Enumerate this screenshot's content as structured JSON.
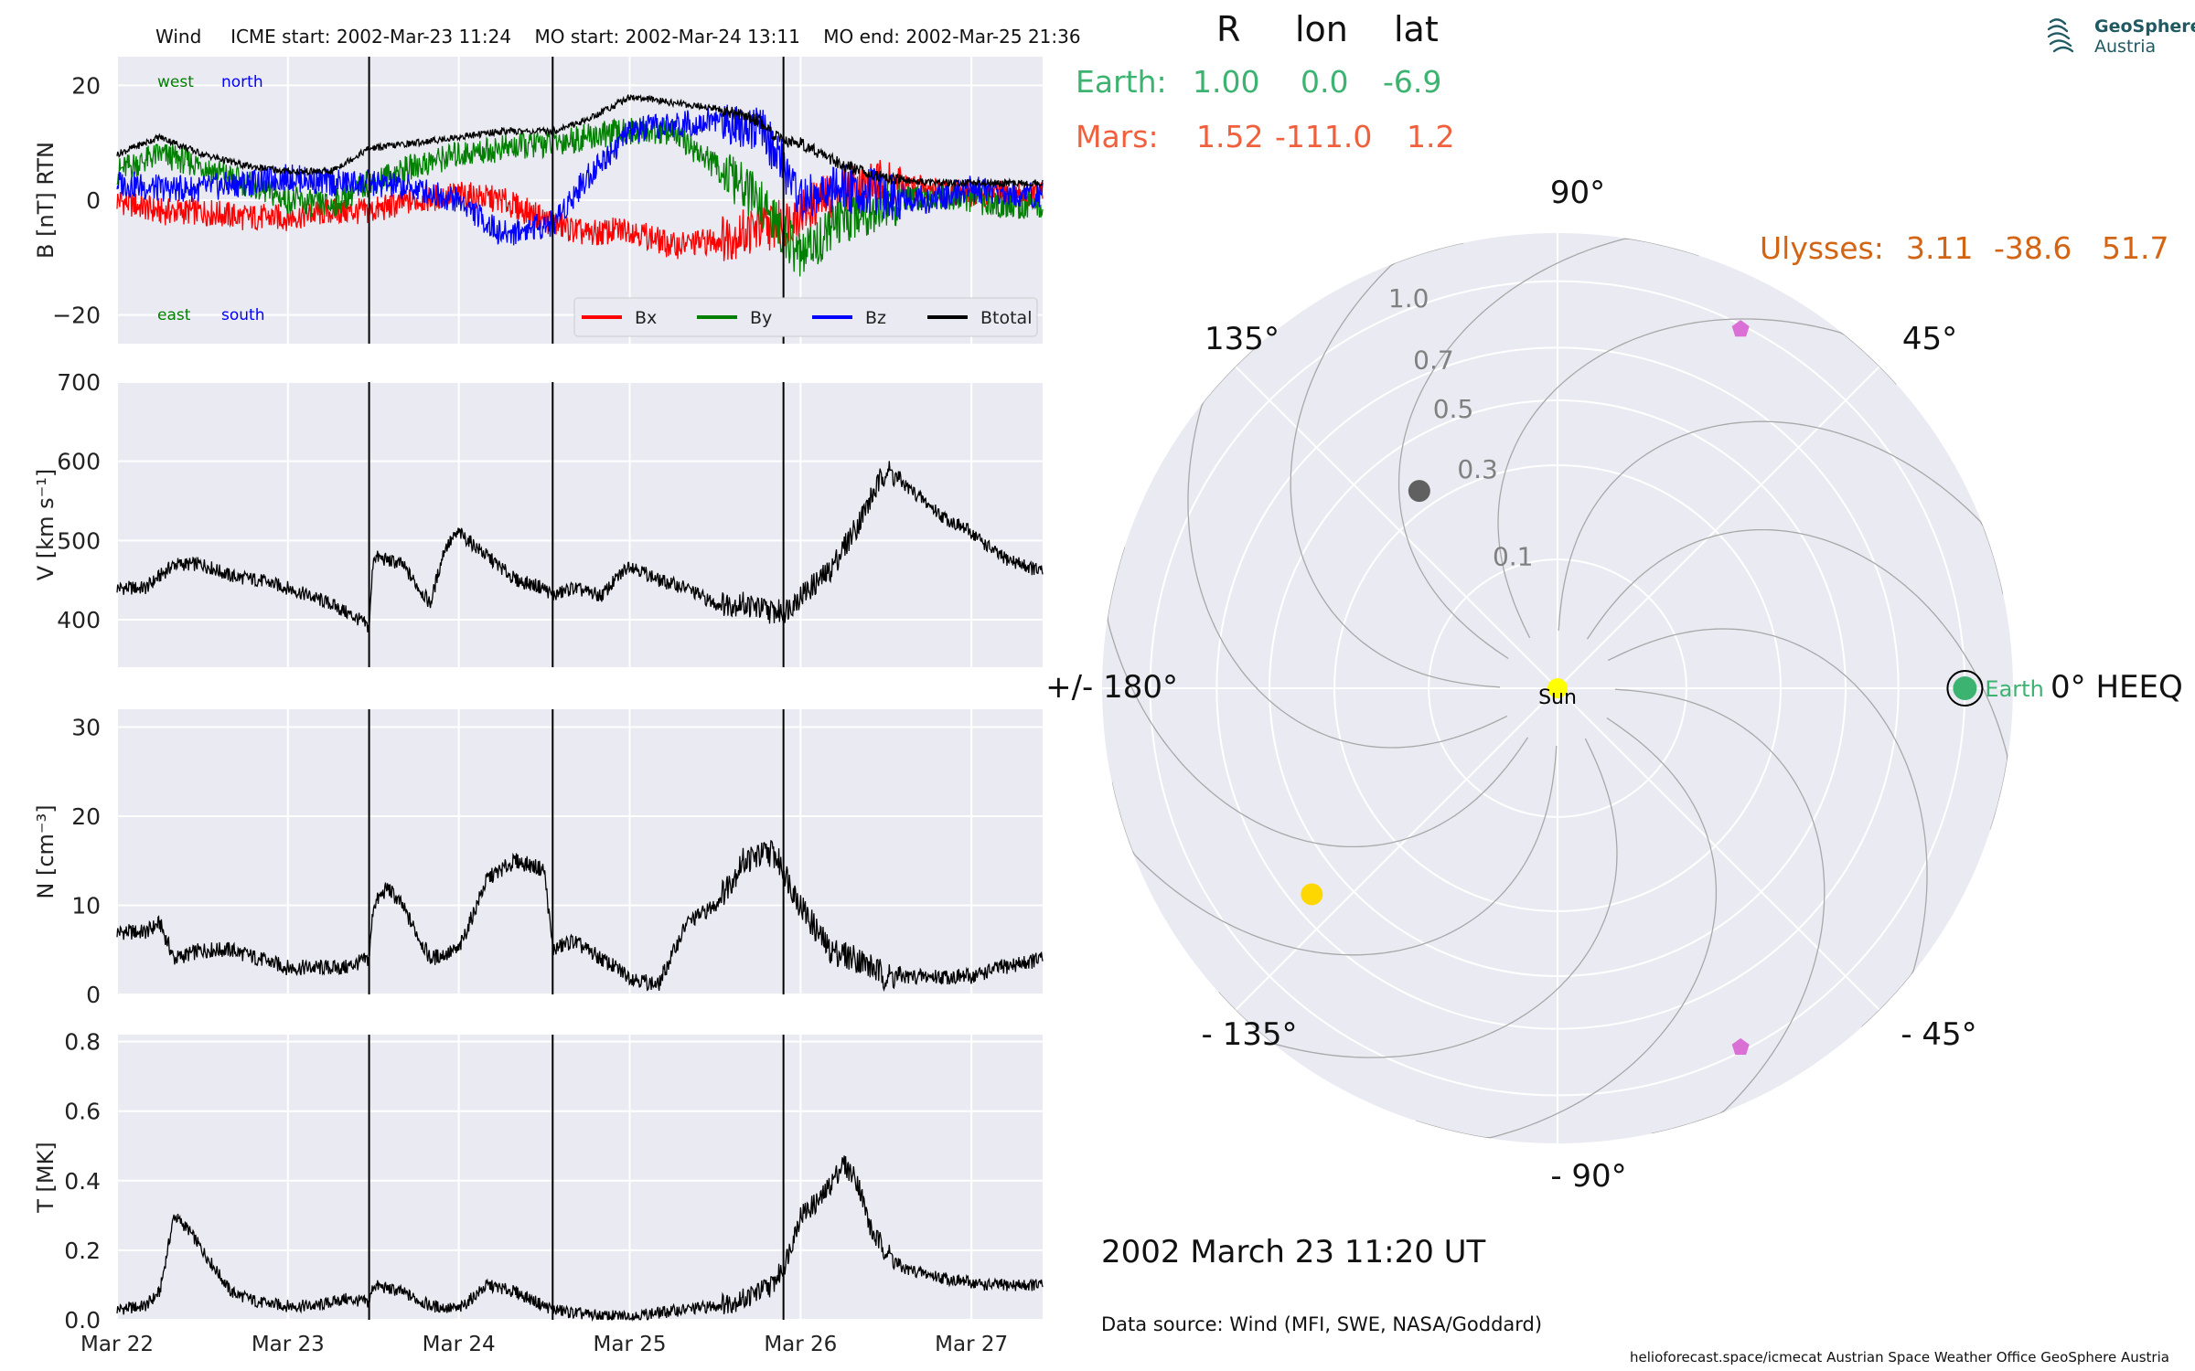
{
  "header": {
    "spacecraft": "Wind",
    "icme_start": "ICME start: 2002-Mar-23 11:24",
    "mo_start": "MO start: 2002-Mar-24 13:11",
    "mo_end": "MO end: 2002-Mar-25 21:36"
  },
  "positions": {
    "headers": [
      "R",
      "lon",
      "lat"
    ],
    "earth": {
      "label": "Earth:",
      "r": "1.00",
      "lon": "0.0",
      "lat": "-6.9",
      "color": "#3cb371"
    },
    "mars": {
      "label": "Mars:",
      "r": "1.52",
      "lon": "-111.0",
      "lat": "1.2",
      "color": "#f0603d"
    },
    "ulysses": {
      "label": "Ulysses:",
      "r": "3.11",
      "lon": "-38.6",
      "lat": "51.7",
      "color": "#d26414"
    }
  },
  "logo": {
    "line1": "GeoSphere",
    "line2": "Austria",
    "icon": "geosphere-wave-icon"
  },
  "timestamp": "2002 March 23  11:20 UT",
  "data_source": "Data source: Wind (MFI, SWE, NASA/Goddard)",
  "credits": "helioforecast.space/icmecat   Austrian Space Weather Office   GeoSphere Austria",
  "chart_data": [
    {
      "type": "line",
      "panel": "magnetic-field",
      "ylabel": "B [nT] RTN",
      "ylim": [
        -25,
        25
      ],
      "yticks": [
        -20,
        0,
        20
      ],
      "xlim": [
        "2002-03-22 00:00",
        "2002-03-27 10:00"
      ],
      "xticks": [
        "Mar 22",
        "Mar 23",
        "Mar 24",
        "Mar 25",
        "Mar 26",
        "Mar 27"
      ],
      "grid": true,
      "legend": "bottom-right",
      "annotations": {
        "west": "west",
        "north": "north",
        "east": "east",
        "south": "south"
      },
      "vertical_lines": [
        "2002-03-23 11:24",
        "2002-03-24 13:11",
        "2002-03-25 21:36"
      ],
      "x_hours": [
        0,
        6,
        12,
        18,
        24,
        30,
        35.4,
        42,
        48,
        54,
        61.2,
        66,
        72,
        78,
        84,
        90,
        93.6,
        96,
        102,
        108,
        114,
        120,
        126,
        130
      ],
      "series": [
        {
          "name": "Bx",
          "color": "#ff0000",
          "values": [
            0,
            -2,
            -2,
            -3,
            -3,
            -2,
            -2,
            0,
            1,
            0,
            -4,
            -6,
            -5,
            -8,
            -7,
            -5,
            -4,
            -2,
            2,
            3,
            2,
            1,
            1,
            1
          ]
        },
        {
          "name": "By",
          "color": "#008000",
          "values": [
            5,
            8,
            6,
            3,
            0,
            -1,
            3,
            6,
            8,
            9,
            10,
            11,
            12,
            12,
            6,
            0,
            -6,
            -10,
            -3,
            -1,
            1,
            0,
            -1,
            -1
          ]
        },
        {
          "name": "Bz",
          "color": "#0000ff",
          "values": [
            3,
            2,
            2,
            3,
            4,
            3,
            3,
            2,
            0,
            -6,
            -4,
            4,
            12,
            13,
            14,
            13,
            6,
            0,
            2,
            1,
            0,
            2,
            1,
            1
          ]
        },
        {
          "name": "Btotal",
          "color": "#000000",
          "values": [
            8,
            11,
            8,
            6,
            5,
            5,
            9,
            10,
            11,
            12,
            12,
            14,
            18,
            17,
            16,
            14,
            10,
            10,
            6,
            4,
            3,
            3,
            3,
            3
          ]
        }
      ]
    },
    {
      "type": "line",
      "panel": "speed",
      "ylabel": "V [km s⁻¹]",
      "ylim": [
        340,
        700
      ],
      "yticks": [
        400,
        500,
        600,
        700
      ],
      "grid": true,
      "x_hours": [
        0,
        4,
        8,
        12,
        16,
        20,
        24,
        30,
        34,
        35.4,
        36,
        40,
        44,
        46,
        48,
        52,
        56,
        60,
        61.2,
        64,
        68,
        72,
        76,
        80,
        84,
        88,
        92,
        93.6,
        96,
        100,
        104,
        108,
        112,
        116,
        120,
        124,
        130
      ],
      "series": [
        {
          "name": "V",
          "color": "#000000",
          "values": [
            440,
            440,
            470,
            470,
            455,
            450,
            440,
            420,
            400,
            390,
            480,
            470,
            420,
            490,
            510,
            480,
            450,
            440,
            430,
            440,
            430,
            470,
            450,
            440,
            420,
            420,
            410,
            410,
            430,
            460,
            520,
            590,
            560,
            530,
            510,
            480,
            460
          ]
        }
      ]
    },
    {
      "type": "line",
      "panel": "density",
      "ylabel": "N [cm⁻³]",
      "ylim": [
        0,
        32
      ],
      "yticks": [
        0,
        10,
        20,
        30
      ],
      "grid": true,
      "x_hours": [
        0,
        4,
        6,
        8,
        12,
        16,
        20,
        24,
        28,
        32,
        35.4,
        36,
        38,
        40,
        44,
        48,
        52,
        56,
        60,
        61.2,
        64,
        68,
        72,
        76,
        80,
        84,
        88,
        92,
        93.6,
        96,
        100,
        104,
        108,
        112,
        116,
        120,
        124,
        130
      ],
      "series": [
        {
          "name": "N",
          "color": "#000000",
          "values": [
            7,
            7,
            8,
            4,
            5,
            5,
            4,
            3,
            3,
            3,
            4,
            10,
            12,
            10,
            4,
            5,
            13,
            15,
            14,
            5,
            6,
            4,
            2,
            1,
            8,
            10,
            15,
            16,
            14,
            10,
            5,
            4,
            2,
            2,
            2,
            2,
            3,
            4
          ]
        }
      ]
    },
    {
      "type": "line",
      "panel": "temperature",
      "ylabel": "T [MK]",
      "ylim": [
        0,
        0.82
      ],
      "yticks": [
        0.0,
        0.2,
        0.4,
        0.6,
        0.8
      ],
      "grid": true,
      "x_hours": [
        0,
        4,
        6,
        8,
        10,
        12,
        16,
        20,
        24,
        28,
        32,
        35.4,
        36,
        40,
        44,
        48,
        52,
        56,
        60,
        61.2,
        64,
        68,
        72,
        76,
        80,
        84,
        88,
        92,
        93.6,
        96,
        99,
        102,
        104,
        106,
        110,
        116,
        122,
        130
      ],
      "series": [
        {
          "name": "T",
          "color": "#000000",
          "values": [
            0.03,
            0.04,
            0.08,
            0.3,
            0.26,
            0.2,
            0.08,
            0.05,
            0.04,
            0.04,
            0.06,
            0.05,
            0.1,
            0.08,
            0.04,
            0.03,
            0.1,
            0.08,
            0.04,
            0.03,
            0.02,
            0.01,
            0.01,
            0.02,
            0.03,
            0.04,
            0.06,
            0.1,
            0.15,
            0.3,
            0.35,
            0.45,
            0.4,
            0.25,
            0.15,
            0.12,
            0.1,
            0.1
          ]
        }
      ]
    },
    {
      "type": "scatter",
      "panel": "orbit-polar",
      "projection": "polar",
      "angle_labels": {
        "a0": "0° HEEQ",
        "a45": "45°",
        "a90": "90°",
        "a135": "135°",
        "a180": "+/- 180°",
        "am135": "- 135°",
        "am90": "- 90°",
        "am45": "- 45°"
      },
      "radial_ticks": [
        "0.1",
        "0.3",
        "0.5",
        "0.7",
        "1.0"
      ],
      "radial_values": [
        0.1,
        0.3,
        0.5,
        0.7,
        1.0
      ],
      "rmax": 1.25,
      "radial_scale": "sqrt",
      "spiral_lines": 12,
      "points": [
        {
          "name": "Sun",
          "lon": 0,
          "r": 0,
          "color": "#ffff00",
          "label": "Sun"
        },
        {
          "name": "Earth",
          "lon": 0,
          "r": 1.0,
          "color": "#3cb371",
          "label": "Earth",
          "ring": true
        },
        {
          "name": "Mars",
          "lon": -111.0,
          "r": 1.52,
          "color": "#f0603d",
          "label": "",
          "visible": false
        },
        {
          "name": "spacecraft-gold",
          "lon": -140,
          "r": 0.62,
          "color": "#ffd700",
          "label": ""
        },
        {
          "name": "spacecraft-grey",
          "lon": 125,
          "r": 0.35,
          "color": "#606060",
          "label": ""
        },
        {
          "name": "pentagon-upper",
          "lon": 63,
          "r": 0.98,
          "color": "#da70d6",
          "label": "",
          "marker": "pentagon"
        },
        {
          "name": "pentagon-lower",
          "lon": -63,
          "r": 0.98,
          "color": "#da70d6",
          "label": "",
          "marker": "pentagon"
        }
      ]
    }
  ]
}
